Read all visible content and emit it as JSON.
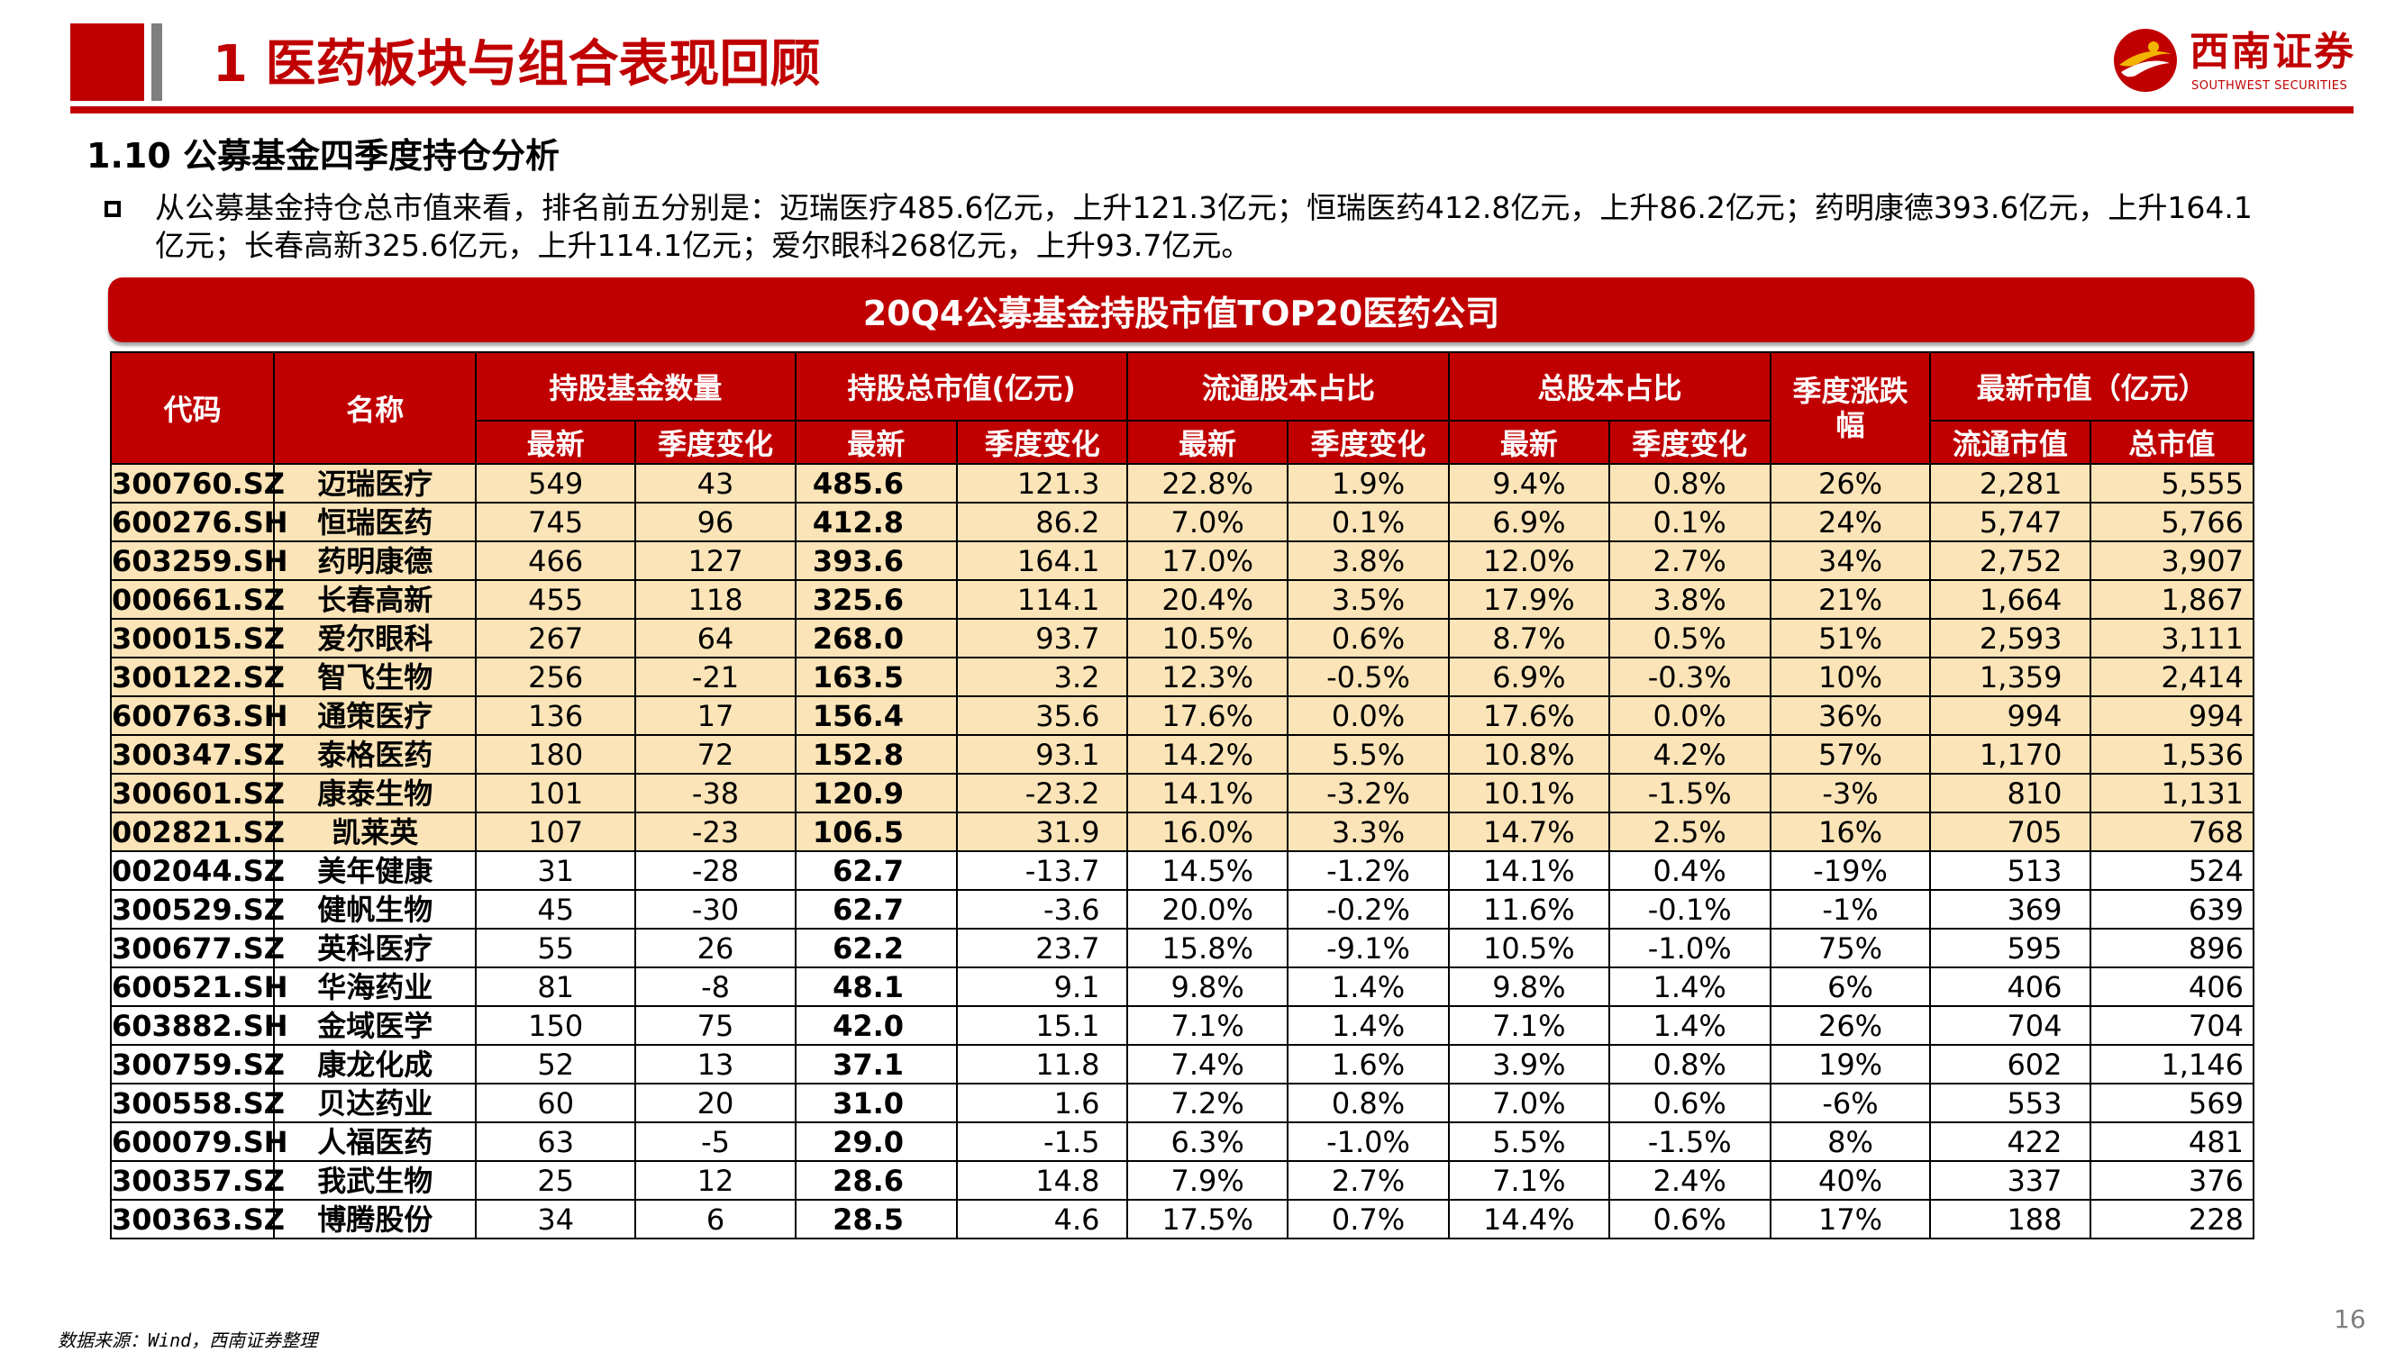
{
  "header": {
    "title": "1 医药板块与组合表现回顾",
    "logo_cn": "西南证券",
    "logo_en": "SOUTHWEST SECURITIES"
  },
  "section_title": "1.10 公募基金四季度持仓分析",
  "bullet": "从公募基金持仓总市值来看，排名前五分别是：迈瑞医疗485.6亿元，上升121.3亿元；恒瑞医药412.8亿元，上升86.2亿元；药明康德393.6亿元，上升164.1亿元；长春高新325.6亿元，上升114.1亿元；爱尔眼科268亿元，上升93.7亿元。",
  "table": {
    "banner_title": "20Q4公募基金持股市值TOP20医药公司",
    "headers": {
      "code": "代码",
      "name": "名称",
      "fund_count": "持股基金数量",
      "market_value": "持股总市值(亿元)",
      "float_ratio": "流通股本占比",
      "total_ratio": "总股本占比",
      "quarter_change": "季度涨跌幅",
      "latest_mv": "最新市值（亿元）",
      "latest": "最新",
      "qchange": "季度变化",
      "float_mv": "流通市值",
      "total_mv": "总市值"
    },
    "rows": [
      {
        "code": "300760.SZ",
        "name": "迈瑞医疗",
        "fund_latest": "549",
        "fund_chg": "43",
        "mv_latest": "485.6",
        "mv_chg": "121.3",
        "float_latest": "22.8%",
        "float_chg": "1.9%",
        "total_latest": "9.4%",
        "total_chg": "0.8%",
        "q_return": "26%",
        "float_mv": "2,281",
        "total_mv": "5,555"
      },
      {
        "code": "600276.SH",
        "name": "恒瑞医药",
        "fund_latest": "745",
        "fund_chg": "96",
        "mv_latest": "412.8",
        "mv_chg": "86.2",
        "float_latest": "7.0%",
        "float_chg": "0.1%",
        "total_latest": "6.9%",
        "total_chg": "0.1%",
        "q_return": "24%",
        "float_mv": "5,747",
        "total_mv": "5,766"
      },
      {
        "code": "603259.SH",
        "name": "药明康德",
        "fund_latest": "466",
        "fund_chg": "127",
        "mv_latest": "393.6",
        "mv_chg": "164.1",
        "float_latest": "17.0%",
        "float_chg": "3.8%",
        "total_latest": "12.0%",
        "total_chg": "2.7%",
        "q_return": "34%",
        "float_mv": "2,752",
        "total_mv": "3,907"
      },
      {
        "code": "000661.SZ",
        "name": "长春高新",
        "fund_latest": "455",
        "fund_chg": "118",
        "mv_latest": "325.6",
        "mv_chg": "114.1",
        "float_latest": "20.4%",
        "float_chg": "3.5%",
        "total_latest": "17.9%",
        "total_chg": "3.8%",
        "q_return": "21%",
        "float_mv": "1,664",
        "total_mv": "1,867"
      },
      {
        "code": "300015.SZ",
        "name": "爱尔眼科",
        "fund_latest": "267",
        "fund_chg": "64",
        "mv_latest": "268.0",
        "mv_chg": "93.7",
        "float_latest": "10.5%",
        "float_chg": "0.6%",
        "total_latest": "8.7%",
        "total_chg": "0.5%",
        "q_return": "51%",
        "float_mv": "2,593",
        "total_mv": "3,111"
      },
      {
        "code": "300122.SZ",
        "name": "智飞生物",
        "fund_latest": "256",
        "fund_chg": "-21",
        "mv_latest": "163.5",
        "mv_chg": "3.2",
        "float_latest": "12.3%",
        "float_chg": "-0.5%",
        "total_latest": "6.9%",
        "total_chg": "-0.3%",
        "q_return": "10%",
        "float_mv": "1,359",
        "total_mv": "2,414"
      },
      {
        "code": "600763.SH",
        "name": "通策医疗",
        "fund_latest": "136",
        "fund_chg": "17",
        "mv_latest": "156.4",
        "mv_chg": "35.6",
        "float_latest": "17.6%",
        "float_chg": "0.0%",
        "total_latest": "17.6%",
        "total_chg": "0.0%",
        "q_return": "36%",
        "float_mv": "994",
        "total_mv": "994"
      },
      {
        "code": "300347.SZ",
        "name": "泰格医药",
        "fund_latest": "180",
        "fund_chg": "72",
        "mv_latest": "152.8",
        "mv_chg": "93.1",
        "float_latest": "14.2%",
        "float_chg": "5.5%",
        "total_latest": "10.8%",
        "total_chg": "4.2%",
        "q_return": "57%",
        "float_mv": "1,170",
        "total_mv": "1,536"
      },
      {
        "code": "300601.SZ",
        "name": "康泰生物",
        "fund_latest": "101",
        "fund_chg": "-38",
        "mv_latest": "120.9",
        "mv_chg": "-23.2",
        "float_latest": "14.1%",
        "float_chg": "-3.2%",
        "total_latest": "10.1%",
        "total_chg": "-1.5%",
        "q_return": "-3%",
        "float_mv": "810",
        "total_mv": "1,131"
      },
      {
        "code": "002821.SZ",
        "name": "凯莱英",
        "fund_latest": "107",
        "fund_chg": "-23",
        "mv_latest": "106.5",
        "mv_chg": "31.9",
        "float_latest": "16.0%",
        "float_chg": "3.3%",
        "total_latest": "14.7%",
        "total_chg": "2.5%",
        "q_return": "16%",
        "float_mv": "705",
        "total_mv": "768"
      },
      {
        "code": "002044.SZ",
        "name": "美年健康",
        "fund_latest": "31",
        "fund_chg": "-28",
        "mv_latest": "62.7",
        "mv_chg": "-13.7",
        "float_latest": "14.5%",
        "float_chg": "-1.2%",
        "total_latest": "14.1%",
        "total_chg": "0.4%",
        "q_return": "-19%",
        "float_mv": "513",
        "total_mv": "524"
      },
      {
        "code": "300529.SZ",
        "name": "健帆生物",
        "fund_latest": "45",
        "fund_chg": "-30",
        "mv_latest": "62.7",
        "mv_chg": "-3.6",
        "float_latest": "20.0%",
        "float_chg": "-0.2%",
        "total_latest": "11.6%",
        "total_chg": "-0.1%",
        "q_return": "-1%",
        "float_mv": "369",
        "total_mv": "639"
      },
      {
        "code": "300677.SZ",
        "name": "英科医疗",
        "fund_latest": "55",
        "fund_chg": "26",
        "mv_latest": "62.2",
        "mv_chg": "23.7",
        "float_latest": "15.8%",
        "float_chg": "-9.1%",
        "total_latest": "10.5%",
        "total_chg": "-1.0%",
        "q_return": "75%",
        "float_mv": "595",
        "total_mv": "896"
      },
      {
        "code": "600521.SH",
        "name": "华海药业",
        "fund_latest": "81",
        "fund_chg": "-8",
        "mv_latest": "48.1",
        "mv_chg": "9.1",
        "float_latest": "9.8%",
        "float_chg": "1.4%",
        "total_latest": "9.8%",
        "total_chg": "1.4%",
        "q_return": "6%",
        "float_mv": "406",
        "total_mv": "406"
      },
      {
        "code": "603882.SH",
        "name": "金域医学",
        "fund_latest": "150",
        "fund_chg": "75",
        "mv_latest": "42.0",
        "mv_chg": "15.1",
        "float_latest": "7.1%",
        "float_chg": "1.4%",
        "total_latest": "7.1%",
        "total_chg": "1.4%",
        "q_return": "26%",
        "float_mv": "704",
        "total_mv": "704"
      },
      {
        "code": "300759.SZ",
        "name": "康龙化成",
        "fund_latest": "52",
        "fund_chg": "13",
        "mv_latest": "37.1",
        "mv_chg": "11.8",
        "float_latest": "7.4%",
        "float_chg": "1.6%",
        "total_latest": "3.9%",
        "total_chg": "0.8%",
        "q_return": "19%",
        "float_mv": "602",
        "total_mv": "1,146"
      },
      {
        "code": "300558.SZ",
        "name": "贝达药业",
        "fund_latest": "60",
        "fund_chg": "20",
        "mv_latest": "31.0",
        "mv_chg": "1.6",
        "float_latest": "7.2%",
        "float_chg": "0.8%",
        "total_latest": "7.0%",
        "total_chg": "0.6%",
        "q_return": "-6%",
        "float_mv": "553",
        "total_mv": "569"
      },
      {
        "code": "600079.SH",
        "name": "人福医药",
        "fund_latest": "63",
        "fund_chg": "-5",
        "mv_latest": "29.0",
        "mv_chg": "-1.5",
        "float_latest": "6.3%",
        "float_chg": "-1.0%",
        "total_latest": "5.5%",
        "total_chg": "-1.5%",
        "q_return": "8%",
        "float_mv": "422",
        "total_mv": "481"
      },
      {
        "code": "300357.SZ",
        "name": "我武生物",
        "fund_latest": "25",
        "fund_chg": "12",
        "mv_latest": "28.6",
        "mv_chg": "14.8",
        "float_latest": "7.9%",
        "float_chg": "2.7%",
        "total_latest": "7.1%",
        "total_chg": "2.4%",
        "q_return": "40%",
        "float_mv": "337",
        "total_mv": "376"
      },
      {
        "code": "300363.SZ",
        "name": "博腾股份",
        "fund_latest": "34",
        "fund_chg": "6",
        "mv_latest": "28.5",
        "mv_chg": "4.6",
        "float_latest": "17.5%",
        "float_chg": "0.7%",
        "total_latest": "14.4%",
        "total_chg": "0.6%",
        "q_return": "17%",
        "float_mv": "188",
        "total_mv": "228"
      }
    ]
  },
  "footer": {
    "source": "数据来源：Wind，西南证券整理",
    "page_number": "16"
  },
  "colors": {
    "brand_red": "#c00000",
    "highlight_row": "#fbe4b7",
    "title_gray": "#7f7f7f"
  }
}
